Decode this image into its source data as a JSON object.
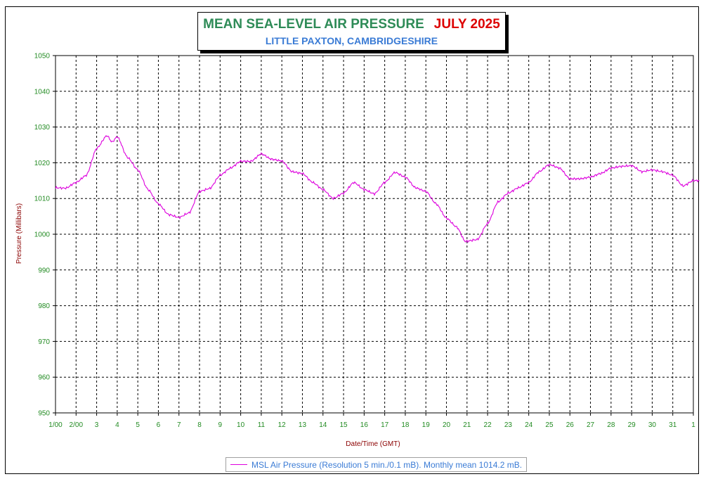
{
  "colors": {
    "title": "#2e8b57",
    "title_date": "#dd0000",
    "subtitle": "#3a7bd5",
    "axis_ticks": "#228b22",
    "ylabel": "#8b0000",
    "xlabel": "#8b0000",
    "series": "#dd00dd",
    "grid": "#000000",
    "legend_text": "#3a7bd5"
  },
  "header": {
    "title": "MEAN SEA-LEVEL AIR PRESSURE",
    "date": "JULY 2025",
    "subtitle": "LITTLE PAXTON, CAMBRIDGESHIRE"
  },
  "legend": {
    "label": "MSL Air Pressure (Resolution 5 min./0.1 mB). Monthly mean 1014.2 mB."
  },
  "chart_data": {
    "type": "line",
    "title": "MEAN SEA-LEVEL AIR PRESSURE   JULY 2025",
    "subtitle": "LITTLE PAXTON, CAMBRIDGESHIRE",
    "xlabel": "Date/Time (GMT)",
    "ylabel": "Pressure (Millibars)",
    "ylim": [
      950,
      1050
    ],
    "yticks": [
      950,
      960,
      970,
      980,
      990,
      1000,
      1010,
      1020,
      1030,
      1040,
      1050
    ],
    "xlim": [
      "2025-07-01 00:00",
      "2025-08-01 00:00"
    ],
    "xtick_labels": [
      "1/00",
      "2/00",
      "3",
      "4",
      "5",
      "6",
      "7",
      "8",
      "9",
      "10",
      "11",
      "12",
      "13",
      "14",
      "15",
      "16",
      "17",
      "18",
      "19",
      "20",
      "21",
      "22",
      "23",
      "24",
      "25",
      "26",
      "27",
      "28",
      "29",
      "30",
      "31",
      "1"
    ],
    "grid": true,
    "legend_position": "bottom-center",
    "series": [
      {
        "name": "MSL Air Pressure (Resolution 5 min./0.1 mB). Monthly mean 1014.2 mB.",
        "x": [
          "2025-07-01 00:00",
          "2025-07-01 12:00",
          "2025-07-02 00:00",
          "2025-07-02 12:00",
          "2025-07-03 00:00",
          "2025-07-03 12:00",
          "2025-07-03 18:00",
          "2025-07-04 00:00",
          "2025-07-04 12:00",
          "2025-07-05 00:00",
          "2025-07-05 12:00",
          "2025-07-06 00:00",
          "2025-07-06 12:00",
          "2025-07-07 00:00",
          "2025-07-07 12:00",
          "2025-07-08 00:00",
          "2025-07-08 12:00",
          "2025-07-09 00:00",
          "2025-07-09 12:00",
          "2025-07-10 00:00",
          "2025-07-10 12:00",
          "2025-07-11 00:00",
          "2025-07-11 12:00",
          "2025-07-12 00:00",
          "2025-07-12 12:00",
          "2025-07-13 00:00",
          "2025-07-13 12:00",
          "2025-07-14 00:00",
          "2025-07-14 12:00",
          "2025-07-15 00:00",
          "2025-07-15 12:00",
          "2025-07-16 00:00",
          "2025-07-16 12:00",
          "2025-07-17 00:00",
          "2025-07-17 12:00",
          "2025-07-18 00:00",
          "2025-07-18 12:00",
          "2025-07-19 00:00",
          "2025-07-19 12:00",
          "2025-07-20 00:00",
          "2025-07-20 12:00",
          "2025-07-20 22:00",
          "2025-07-21 12:00",
          "2025-07-22 00:00",
          "2025-07-22 12:00",
          "2025-07-23 00:00",
          "2025-07-23 12:00",
          "2025-07-24 00:00",
          "2025-07-24 12:00",
          "2025-07-25 00:00",
          "2025-07-25 12:00",
          "2025-07-26 00:00",
          "2025-07-26 12:00",
          "2025-07-27 00:00",
          "2025-07-27 12:00",
          "2025-07-28 00:00",
          "2025-07-28 12:00",
          "2025-07-29 00:00",
          "2025-07-29 12:00",
          "2025-07-30 00:00",
          "2025-07-30 12:00",
          "2025-07-31 00:00",
          "2025-07-31 12:00",
          "2025-08-01 00:00",
          "2025-08-01 07:00"
        ],
        "y": [
          1013.0,
          1012.9,
          1014.5,
          1016.5,
          1024.0,
          1027.6,
          1025.8,
          1027.3,
          1021.5,
          1018.0,
          1012.5,
          1008.5,
          1005.5,
          1004.7,
          1006.0,
          1012.0,
          1012.8,
          1016.5,
          1018.5,
          1020.4,
          1020.4,
          1022.5,
          1021.0,
          1020.5,
          1017.5,
          1017.0,
          1014.5,
          1012.5,
          1010.0,
          1011.5,
          1014.5,
          1012.5,
          1011.3,
          1014.5,
          1017.3,
          1016.0,
          1013.0,
          1012.0,
          1008.5,
          1004.5,
          1002.0,
          998.0,
          998.5,
          1003.0,
          1009.0,
          1011.5,
          1013.0,
          1014.5,
          1017.5,
          1019.5,
          1018.5,
          1015.5,
          1015.5,
          1016.0,
          1017.0,
          1018.5,
          1019.0,
          1019.2,
          1017.5,
          1018.0,
          1017.5,
          1016.5,
          1013.5,
          1015.0,
          1015.0
        ]
      }
    ]
  }
}
